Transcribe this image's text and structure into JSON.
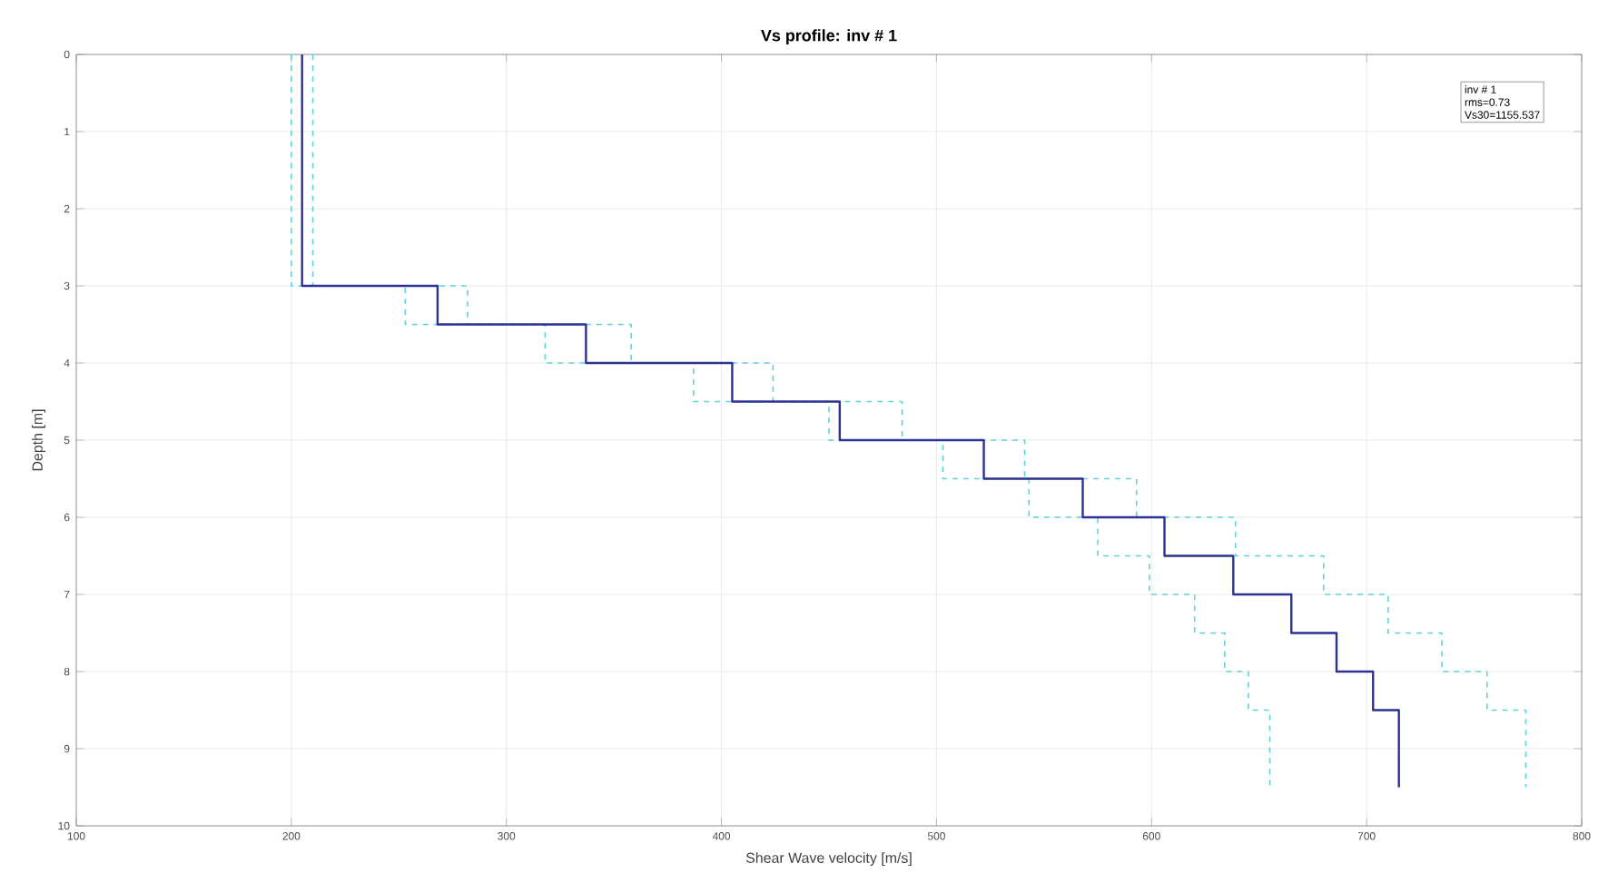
{
  "chart_data": {
    "type": "line",
    "title": "Vs profile: inv # 1",
    "xlabel": "Shear Wave velocity [m/s]",
    "ylabel": "Depth [m]",
    "xlim": [
      100,
      800
    ],
    "xticks": [
      100,
      200,
      300,
      400,
      500,
      600,
      700,
      800
    ],
    "ylim": [
      10,
      0
    ],
    "yticks": [
      0,
      1,
      2,
      3,
      4,
      5,
      6,
      7,
      8,
      9,
      10
    ],
    "grid": true,
    "annotations": [
      "inv # 1",
      "rms=0.73",
      "Vs30=1155.537"
    ],
    "series": [
      {
        "color": "#5fd3d8",
        "line_style": "dashed",
        "x": [
          200,
          200,
          253,
          253,
          318,
          318,
          387,
          387,
          450,
          450,
          503,
          503,
          543,
          543,
          575,
          575,
          599,
          599,
          620,
          620,
          634,
          634,
          645,
          645,
          655,
          655
        ],
        "values": [
          0,
          3,
          3,
          3.5,
          3.5,
          4,
          4,
          4.5,
          4.5,
          5,
          5,
          5.5,
          5.5,
          6,
          6,
          6.5,
          6.5,
          7,
          7,
          7.5,
          7.5,
          8,
          8,
          8.5,
          8.5,
          9.5
        ]
      },
      {
        "color": "#5fd3d8",
        "line_style": "dashed",
        "x": [
          210,
          210,
          282,
          282,
          358,
          358,
          424,
          424,
          484,
          484,
          541,
          541,
          593,
          593,
          639,
          639,
          680,
          680,
          710,
          710,
          735,
          735,
          756,
          756,
          774,
          774
        ],
        "values": [
          0,
          3,
          3,
          3.5,
          3.5,
          4,
          4,
          4.5,
          4.5,
          5,
          5,
          5.5,
          5.5,
          6,
          6,
          6.5,
          6.5,
          7,
          7,
          7.5,
          7.5,
          8,
          8,
          8.5,
          8.5,
          9.5
        ]
      },
      {
        "color": "#2e3192",
        "line_style": "solid",
        "x": [
          205,
          205,
          268,
          268,
          337,
          337,
          405,
          405,
          455,
          455,
          522,
          522,
          568,
          568,
          606,
          606,
          638,
          638,
          665,
          665,
          686,
          686,
          703,
          703,
          715,
          715
        ],
        "values": [
          0,
          3,
          3,
          3.5,
          3.5,
          4,
          4,
          4.5,
          4.5,
          5,
          5,
          5.5,
          5.5,
          6,
          6,
          6.5,
          6.5,
          7,
          7,
          7.5,
          7.5,
          8,
          8,
          8.5,
          8.5,
          9.5
        ]
      }
    ]
  }
}
